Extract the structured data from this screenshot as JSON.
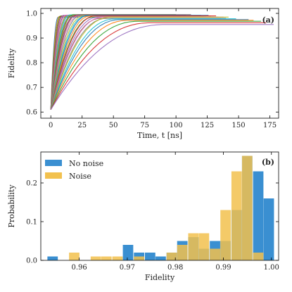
{
  "chart_data": [
    {
      "panel": "(a)",
      "type": "line",
      "xlabel": "Time, t [ns]",
      "ylabel": "Fidelity",
      "xlim": [
        -8,
        182
      ],
      "ylim": [
        0.575,
        1.02
      ],
      "xticks": [
        0,
        25,
        50,
        75,
        100,
        125,
        150,
        175
      ],
      "yticks": [
        0.6,
        0.7,
        0.8,
        0.9,
        1.0
      ],
      "xtick_labels": [
        "0",
        "25",
        "50",
        "75",
        "100",
        "125",
        "150",
        "175"
      ],
      "ytick_labels": [
        "0.6",
        "0.7",
        "0.8",
        "0.9",
        "1.0"
      ],
      "grid": false,
      "start_fidelity": 0.61,
      "colors": [
        "#1f77b4",
        "#ff7f0e",
        "#2ca02c",
        "#d62728",
        "#9467bd",
        "#8c564b",
        "#e377c2",
        "#7f7f7f",
        "#bcbd22",
        "#17becf"
      ],
      "series": [
        {
          "t_reach": 6,
          "f_final": 0.985,
          "t_end": 22
        },
        {
          "t_reach": 7,
          "f_final": 0.988,
          "t_end": 30
        },
        {
          "t_reach": 8,
          "f_final": 0.99,
          "t_end": 40
        },
        {
          "t_reach": 9,
          "f_final": 0.99,
          "t_end": 45
        },
        {
          "t_reach": 10,
          "f_final": 0.992,
          "t_end": 55
        },
        {
          "t_reach": 11,
          "f_final": 0.99,
          "t_end": 60
        },
        {
          "t_reach": 12,
          "f_final": 0.993,
          "t_end": 68
        },
        {
          "t_reach": 13,
          "f_final": 0.99,
          "t_end": 70
        },
        {
          "t_reach": 14,
          "f_final": 0.992,
          "t_end": 80
        },
        {
          "t_reach": 15,
          "f_final": 0.994,
          "t_end": 85
        },
        {
          "t_reach": 16,
          "f_final": 0.99,
          "t_end": 90
        },
        {
          "t_reach": 17,
          "f_final": 0.992,
          "t_end": 95
        },
        {
          "t_reach": 18,
          "f_final": 0.995,
          "t_end": 100
        },
        {
          "t_reach": 19,
          "f_final": 0.99,
          "t_end": 104
        },
        {
          "t_reach": 20,
          "f_final": 0.993,
          "t_end": 108
        },
        {
          "t_reach": 21,
          "f_final": 0.995,
          "t_end": 112
        },
        {
          "t_reach": 22,
          "f_final": 0.99,
          "t_end": 116
        },
        {
          "t_reach": 24,
          "f_final": 0.992,
          "t_end": 120
        },
        {
          "t_reach": 26,
          "f_final": 0.99,
          "t_end": 122
        },
        {
          "t_reach": 28,
          "f_final": 0.99,
          "t_end": 124
        },
        {
          "t_reach": 30,
          "f_final": 0.992,
          "t_end": 126
        },
        {
          "t_reach": 32,
          "f_final": 0.99,
          "t_end": 128
        },
        {
          "t_reach": 34,
          "f_final": 0.985,
          "t_end": 130
        },
        {
          "t_reach": 36,
          "f_final": 0.99,
          "t_end": 132
        },
        {
          "t_reach": 38,
          "f_final": 0.985,
          "t_end": 134
        },
        {
          "t_reach": 40,
          "f_final": 0.98,
          "t_end": 136
        },
        {
          "t_reach": 42,
          "f_final": 0.985,
          "t_end": 138
        },
        {
          "t_reach": 45,
          "f_final": 0.98,
          "t_end": 140
        },
        {
          "t_reach": 48,
          "f_final": 0.985,
          "t_end": 142
        },
        {
          "t_reach": 52,
          "f_final": 0.978,
          "t_end": 148
        },
        {
          "t_reach": 56,
          "f_final": 0.975,
          "t_end": 158
        },
        {
          "t_reach": 62,
          "f_final": 0.972,
          "t_end": 162
        },
        {
          "t_reach": 70,
          "f_final": 0.968,
          "t_end": 168
        },
        {
          "t_reach": 80,
          "f_final": 0.962,
          "t_end": 172
        },
        {
          "t_reach": 92,
          "f_final": 0.955,
          "t_end": 178
        }
      ]
    },
    {
      "panel": "(b)",
      "type": "bar",
      "xlabel": "Fidelity",
      "ylabel": "Probability",
      "xlim": [
        0.952,
        1.0015
      ],
      "ylim": [
        0,
        0.28
      ],
      "xticks": [
        0.96,
        0.97,
        0.98,
        0.99,
        1.0
      ],
      "yticks": [
        0.0,
        0.1,
        0.2
      ],
      "xtick_labels": [
        "0.96",
        "0.97",
        "0.98",
        "0.99",
        "1.00"
      ],
      "ytick_labels": [
        "0.0",
        "0.1",
        "0.2"
      ],
      "legend_position": "upper-left",
      "bin_width": 0.00225,
      "series": [
        {
          "name": "No noise",
          "color": "#3a8fd1",
          "bins": [
            {
              "x": 0.9545,
              "p": 0.01
            },
            {
              "x": 0.9702,
              "p": 0.04
            },
            {
              "x": 0.9725,
              "p": 0.02
            },
            {
              "x": 0.9748,
              "p": 0.02
            },
            {
              "x": 0.977,
              "p": 0.01
            },
            {
              "x": 0.9793,
              "p": 0.02
            },
            {
              "x": 0.9815,
              "p": 0.05
            },
            {
              "x": 0.9838,
              "p": 0.06
            },
            {
              "x": 0.986,
              "p": 0.03
            },
            {
              "x": 0.9883,
              "p": 0.05
            },
            {
              "x": 0.9905,
              "p": 0.05
            },
            {
              "x": 0.9928,
              "p": 0.13
            },
            {
              "x": 0.995,
              "p": 0.27
            },
            {
              "x": 0.9973,
              "p": 0.23
            },
            {
              "x": 0.9995,
              "p": 0.16
            }
          ]
        },
        {
          "name": "Noise",
          "color": "#f2c14e",
          "bins": [
            {
              "x": 0.959,
              "p": 0.02
            },
            {
              "x": 0.9635,
              "p": 0.01
            },
            {
              "x": 0.9657,
              "p": 0.01
            },
            {
              "x": 0.968,
              "p": 0.01
            },
            {
              "x": 0.9725,
              "p": 0.01
            },
            {
              "x": 0.9793,
              "p": 0.02
            },
            {
              "x": 0.9815,
              "p": 0.04
            },
            {
              "x": 0.9838,
              "p": 0.07
            },
            {
              "x": 0.986,
              "p": 0.07
            },
            {
              "x": 0.9883,
              "p": 0.03
            },
            {
              "x": 0.9905,
              "p": 0.13
            },
            {
              "x": 0.9928,
              "p": 0.23
            },
            {
              "x": 0.995,
              "p": 0.27
            },
            {
              "x": 0.9973,
              "p": 0.02
            }
          ]
        }
      ]
    }
  ]
}
